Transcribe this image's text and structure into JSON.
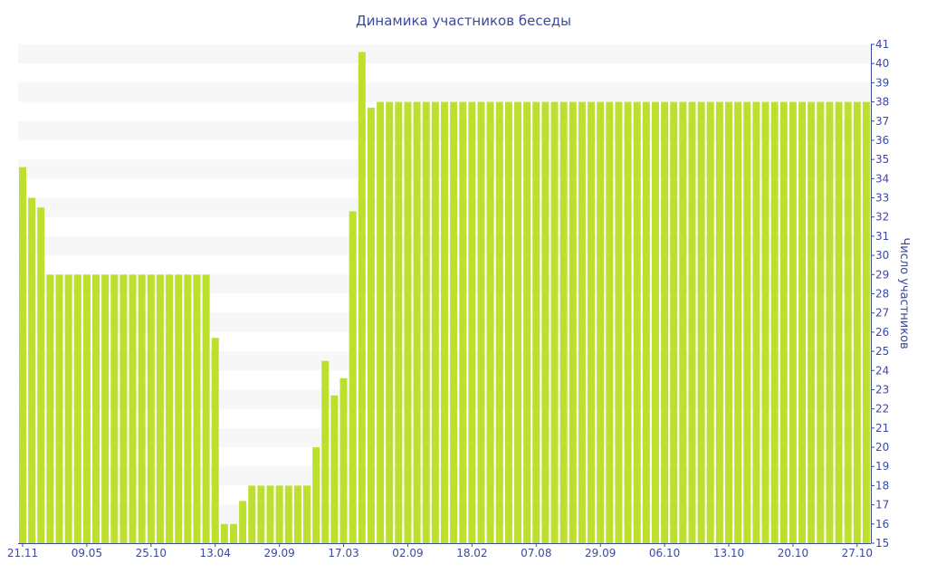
{
  "chart_data": {
    "type": "bar",
    "title": "Динамика участников беседы",
    "xlabel": "",
    "ylabel": "Число участников",
    "ylim": [
      15,
      41
    ],
    "yticks": [
      15,
      16,
      17,
      18,
      19,
      20,
      21,
      22,
      23,
      24,
      25,
      26,
      27,
      28,
      29,
      30,
      31,
      32,
      33,
      34,
      35,
      36,
      37,
      38,
      39,
      40,
      41
    ],
    "xtick_labels": [
      {
        "bar": 0,
        "label": "21.11"
      },
      {
        "bar": 7,
        "label": "09.05"
      },
      {
        "bar": 14,
        "label": "25.10"
      },
      {
        "bar": 21,
        "label": "13.04"
      },
      {
        "bar": 28,
        "label": "29.09"
      },
      {
        "bar": 35,
        "label": "17.03"
      },
      {
        "bar": 42,
        "label": "02.09"
      },
      {
        "bar": 49,
        "label": "18.02"
      },
      {
        "bar": 56,
        "label": "07.08"
      },
      {
        "bar": 63,
        "label": "29.09"
      },
      {
        "bar": 70,
        "label": "06.10"
      },
      {
        "bar": 77,
        "label": "13.10"
      },
      {
        "bar": 84,
        "label": "20.10"
      },
      {
        "bar": 91,
        "label": "27.10"
      }
    ],
    "values": [
      34.6,
      33,
      32.5,
      29,
      29,
      29,
      29,
      29,
      29,
      29,
      29,
      29,
      29,
      29,
      29,
      29,
      29,
      29,
      29,
      29,
      29,
      25.7,
      16,
      16,
      17.2,
      18,
      18,
      18,
      18,
      18,
      18,
      18,
      20,
      24.5,
      22.7,
      23.6,
      32.3,
      40.6,
      37.7,
      38,
      38,
      38,
      38,
      38,
      38,
      38,
      38,
      38,
      38,
      38,
      38,
      38,
      38,
      38,
      38,
      38,
      38,
      38,
      38,
      38,
      38,
      38,
      38,
      38,
      38,
      38,
      38,
      38,
      38,
      38,
      38,
      38,
      38,
      38,
      38,
      38,
      38,
      38,
      38,
      38,
      38,
      38,
      38,
      38,
      38,
      38,
      38,
      38,
      38,
      38,
      38,
      38,
      38
    ],
    "colors": {
      "bar": "#bde02e",
      "axis": "#3b4a9c",
      "stripe": "#f7f7f7"
    },
    "grid": "alternating-bands",
    "legend": "none"
  }
}
